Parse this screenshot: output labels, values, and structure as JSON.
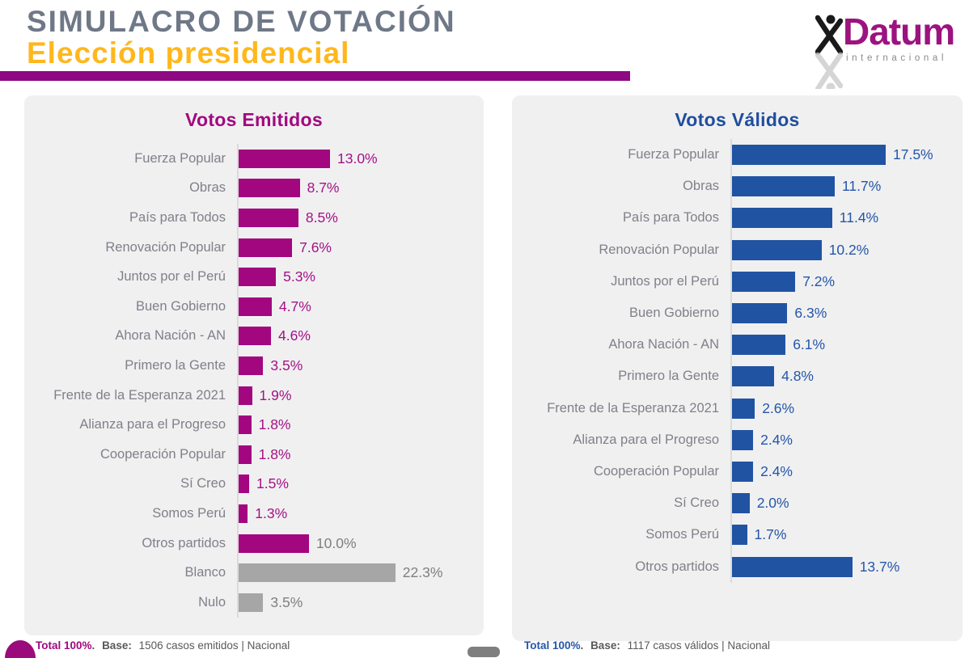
{
  "header": {
    "title": "SIMULACRO DE VOTACIÓN",
    "subtitle": "Elección presidencial"
  },
  "logo": {
    "name": "Datum",
    "tagline": "internacional",
    "figure_icon": "dna-person-icon"
  },
  "colors": {
    "header_title_gray": "#6F7887",
    "header_subtitle_yellow": "#FFB71C",
    "divider_magenta": "#8E0982",
    "magenta_accent": "#A2077F",
    "blue_accent": "#2153A3",
    "gray_bar": "#A6A6A6",
    "panel_background": "#F0F0F1"
  },
  "chart_data": [
    {
      "type": "bar",
      "orientation": "horizontal",
      "title": "Votos Emitidos",
      "categories": [
        "Fuerza Popular",
        "Obras",
        "País para Todos",
        "Renovación Popular",
        "Juntos por el Perú",
        "Buen Gobierno",
        "Ahora Nación - AN",
        "Primero la Gente",
        "Frente de la Esperanza 2021",
        "Alianza para el Progreso",
        "Cooperación Popular",
        "Sí Creo",
        "Somos Perú",
        "Otros partidos",
        "Blanco",
        "Nulo"
      ],
      "values": [
        13.0,
        8.7,
        8.5,
        7.6,
        5.3,
        4.7,
        4.6,
        3.5,
        1.9,
        1.8,
        1.8,
        1.5,
        1.3,
        10.0,
        22.3,
        3.5
      ],
      "value_labels": [
        "13.0%",
        "8.7%",
        "8.5%",
        "7.6%",
        "5.3%",
        "4.7%",
        "4.6%",
        "3.5%",
        "1.9%",
        "1.8%",
        "1.8%",
        "1.5%",
        "1.3%",
        "10.0%",
        "22.3%",
        "3.5%"
      ],
      "bar_colors": [
        "#A2077F",
        "#A2077F",
        "#A2077F",
        "#A2077F",
        "#A2077F",
        "#A2077F",
        "#A2077F",
        "#A2077F",
        "#A2077F",
        "#A2077F",
        "#A2077F",
        "#A2077F",
        "#A2077F",
        "#A2077F",
        "#A6A6A6",
        "#A6A6A6"
      ],
      "value_colors": [
        "#A51186",
        "#A51186",
        "#A51186",
        "#A51186",
        "#A51186",
        "#A51186",
        "#A51186",
        "#A51186",
        "#A51186",
        "#A51186",
        "#A51186",
        "#A51186",
        "#A51186",
        "#7F7F7F",
        "#7F7F7F",
        "#7F7F7F"
      ],
      "xlim": [
        0,
        26
      ],
      "grid": false,
      "legend": "none",
      "footer": {
        "total": "Total 100%",
        "dot": ".",
        "base_label": "Base:",
        "base_text": "1506 casos emitidos | Nacional"
      }
    },
    {
      "type": "bar",
      "orientation": "horizontal",
      "title": "Votos Válidos",
      "categories": [
        "Fuerza Popular",
        "Obras",
        "País para Todos",
        "Renovación Popular",
        "Juntos por el Perú",
        "Buen Gobierno",
        "Ahora Nación - AN",
        "Primero la Gente",
        "Frente de la Esperanza 2021",
        "Alianza para el Progreso",
        "Cooperación Popular",
        "Sí Creo",
        "Somos Perú",
        "Otros partidos"
      ],
      "values": [
        17.5,
        11.7,
        11.4,
        10.2,
        7.2,
        6.3,
        6.1,
        4.8,
        2.6,
        2.4,
        2.4,
        2.0,
        1.7,
        13.7
      ],
      "value_labels": [
        "17.5%",
        "11.7%",
        "11.4%",
        "10.2%",
        "7.2%",
        "6.3%",
        "6.1%",
        "4.8%",
        "2.6%",
        "2.4%",
        "2.4%",
        "2.0%",
        "1.7%",
        "13.7%"
      ],
      "bar_colors": [
        "#2153A3",
        "#2153A3",
        "#2153A3",
        "#2153A3",
        "#2153A3",
        "#2153A3",
        "#2153A3",
        "#2153A3",
        "#2153A3",
        "#2153A3",
        "#2153A3",
        "#2153A3",
        "#2153A3",
        "#2153A3"
      ],
      "value_colors": [
        "#2456A8",
        "#2456A8",
        "#2456A8",
        "#2456A8",
        "#2456A8",
        "#2456A8",
        "#2456A8",
        "#2456A8",
        "#2456A8",
        "#2456A8",
        "#2456A8",
        "#2456A8",
        "#2456A8",
        "#2456A8"
      ],
      "xlim": [
        0,
        21
      ],
      "grid": false,
      "legend": "none",
      "footer": {
        "total": "Total 100%",
        "dot": ".",
        "base_label": "Base:",
        "base_text": "1117 casos válidos | Nacional"
      }
    }
  ]
}
